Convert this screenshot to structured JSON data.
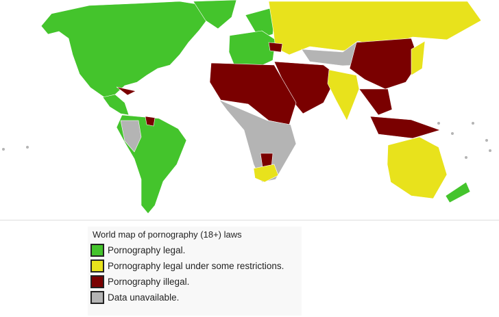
{
  "legend": {
    "title": "World map of pornography (18+) laws",
    "items": [
      {
        "key": "legal",
        "label": "Pornography legal.",
        "color": "#44c42c"
      },
      {
        "key": "restricted",
        "label": "Pornography legal under some restrictions.",
        "color": "#e8e21c"
      },
      {
        "key": "illegal",
        "label": "Pornography illegal.",
        "color": "#7a0000"
      },
      {
        "key": "unavailable",
        "label": "Data unavailable.",
        "color": "#b4b4b4"
      }
    ]
  },
  "ocean_color": "#ffffff"
}
